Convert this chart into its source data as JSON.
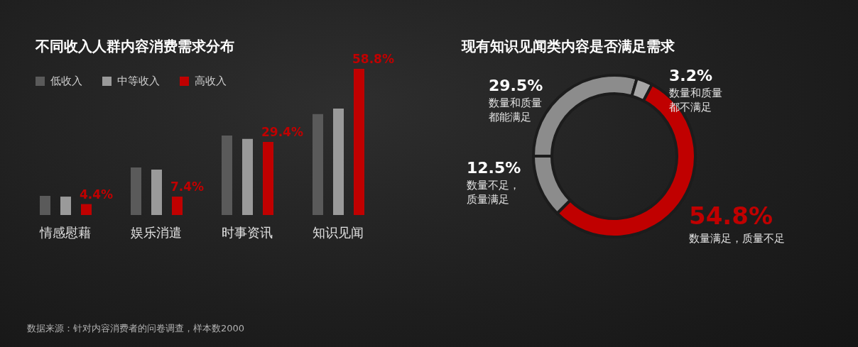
{
  "chart_data": [
    {
      "type": "bar",
      "title": "不同收入人群内容消费需求分布",
      "categories": [
        "情感慰藉",
        "娱乐消遣",
        "时事资讯",
        "知识见闻"
      ],
      "legend": "top left",
      "series": [
        {
          "name": "低收入",
          "color": "#5a5a5a",
          "values": [
            7.7,
            19.1,
            32,
            40.6
          ]
        },
        {
          "name": "中等收入",
          "color": "#9a9a9a",
          "values": [
            7.4,
            18.3,
            30.6,
            42.8
          ]
        },
        {
          "name": "高收入",
          "color": "#c00000",
          "values": [
            4.4,
            7.4,
            29.4,
            58.8
          ],
          "value_labels": [
            "4.4%",
            "7.4%",
            "29.4%",
            "58.8%"
          ]
        }
      ],
      "annotations": [
        "数据来源：针对内容消费者的问卷调查，样本数2000"
      ]
    },
    {
      "type": "donut",
      "title": "现有知识见闻类内容是否满足需求",
      "categories": [
        "数量和质量都能满足",
        "数量和质量都不满足",
        "数量满足，质量不足",
        "数量不足，质量满足"
      ],
      "values": [
        29.5,
        3.2,
        54.8,
        12.5
      ],
      "colors": [
        "#8c8c8c",
        "#a6a6a6",
        "#c00000",
        "#8c8c8c"
      ],
      "value_labels": [
        "29.5%",
        "3.2%",
        "54.8%",
        "12.5%"
      ]
    }
  ]
}
